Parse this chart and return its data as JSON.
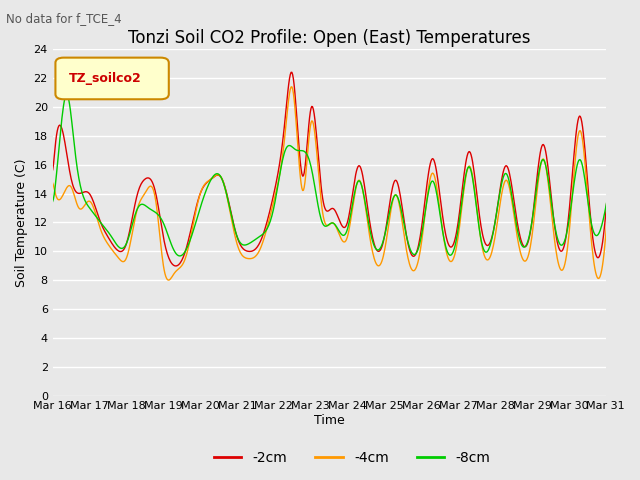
{
  "title": "Tonzi Soil CO2 Profile: Open (East) Temperatures",
  "subtitle": "No data for f_TCE_4",
  "ylabel": "Soil Temperature (C)",
  "xlabel": "Time",
  "legend_label": "TZ_soilco2",
  "ylim": [
    0,
    24
  ],
  "yticks": [
    0,
    2,
    4,
    6,
    8,
    10,
    12,
    14,
    16,
    18,
    20,
    22,
    24
  ],
  "xtick_labels": [
    "Mar 16",
    "Mar 17",
    "Mar 18",
    "Mar 19",
    "Mar 20",
    "Mar 21",
    "Mar 22",
    "Mar 23",
    "Mar 24",
    "Mar 25",
    "Mar 26",
    "Mar 27",
    "Mar 28",
    "Mar 29",
    "Mar 30",
    "Mar 31"
  ],
  "line_colors": [
    "#dd0000",
    "#ff9900",
    "#00cc00"
  ],
  "line_labels": [
    "-2cm",
    "-4cm",
    "-8cm"
  ],
  "background_color": "#e8e8e8",
  "plot_bg_color": "#e8e8e8",
  "grid_color": "#ffffff",
  "title_fontsize": 12,
  "axis_fontsize": 9,
  "tick_fontsize": 8
}
